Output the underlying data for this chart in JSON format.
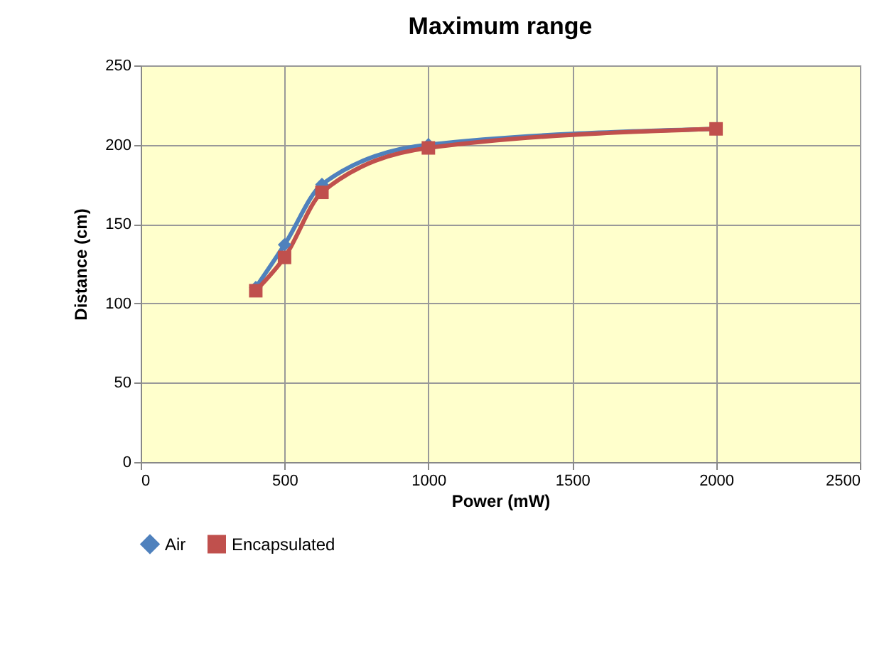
{
  "chart_data": {
    "type": "line",
    "title": "Maximum range",
    "xlabel": "Power (mW)",
    "ylabel": "Distance (cm)",
    "x": [
      400,
      500,
      630,
      1000,
      2000
    ],
    "series": [
      {
        "name": "Air",
        "color": "#4f81bd",
        "marker": "diamond",
        "values": [
          110,
          137,
          175,
          200,
          210
        ]
      },
      {
        "name": "Encapsulated",
        "color": "#c0504d",
        "marker": "square",
        "values": [
          108,
          129,
          170,
          198,
          210
        ]
      }
    ],
    "xlim": [
      0,
      2500
    ],
    "xticks": [
      0,
      500,
      1000,
      1500,
      2000,
      2500
    ],
    "ylim": [
      0,
      250
    ],
    "yticks": [
      0,
      50,
      100,
      150,
      200,
      250
    ],
    "grid": true,
    "legend": "bottom",
    "line_style": "solid"
  }
}
